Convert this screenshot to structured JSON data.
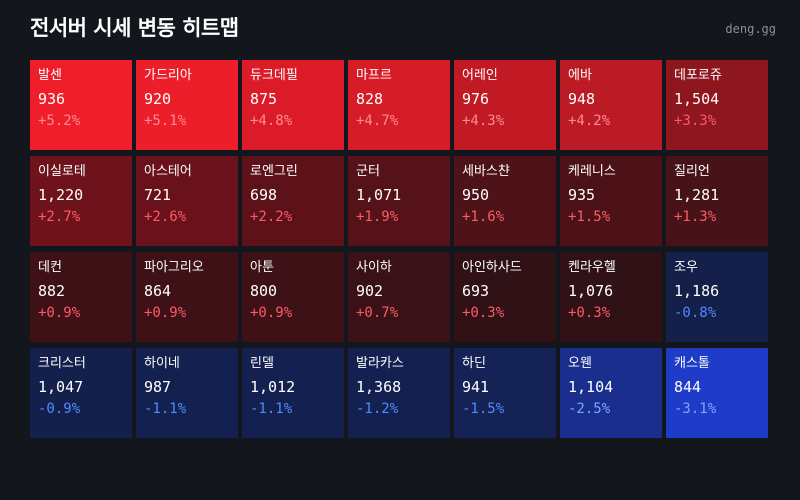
{
  "header": {
    "title": "전서버 시세 변동 히트맵",
    "brand": "deng.gg"
  },
  "colors": {
    "background": "#13161d",
    "up_text": "#ff5a66",
    "up_text_strong": "#ff8a95",
    "down_text": "#4d8cff",
    "down_text_light": "#7aa8ff"
  },
  "chart_data": {
    "type": "heatmap",
    "columns": 7,
    "rows": 4,
    "cells": [
      {
        "name": "발센",
        "price": "936",
        "change": "+5.2%",
        "value": 5.2
      },
      {
        "name": "가드리아",
        "price": "920",
        "change": "+5.1%",
        "value": 5.1
      },
      {
        "name": "듀크데필",
        "price": "875",
        "change": "+4.8%",
        "value": 4.8
      },
      {
        "name": "마프르",
        "price": "828",
        "change": "+4.7%",
        "value": 4.7
      },
      {
        "name": "어레인",
        "price": "976",
        "change": "+4.3%",
        "value": 4.3
      },
      {
        "name": "에바",
        "price": "948",
        "change": "+4.2%",
        "value": 4.2
      },
      {
        "name": "데포로쥬",
        "price": "1,504",
        "change": "+3.3%",
        "value": 3.3
      },
      {
        "name": "이실로테",
        "price": "1,220",
        "change": "+2.7%",
        "value": 2.7
      },
      {
        "name": "아스테어",
        "price": "721",
        "change": "+2.6%",
        "value": 2.6
      },
      {
        "name": "로엔그린",
        "price": "698",
        "change": "+2.2%",
        "value": 2.2
      },
      {
        "name": "군터",
        "price": "1,071",
        "change": "+1.9%",
        "value": 1.9
      },
      {
        "name": "세바스챤",
        "price": "950",
        "change": "+1.6%",
        "value": 1.6
      },
      {
        "name": "케레니스",
        "price": "935",
        "change": "+1.5%",
        "value": 1.5
      },
      {
        "name": "질리언",
        "price": "1,281",
        "change": "+1.3%",
        "value": 1.3
      },
      {
        "name": "데컨",
        "price": "882",
        "change": "+0.9%",
        "value": 0.9
      },
      {
        "name": "파아그리오",
        "price": "864",
        "change": "+0.9%",
        "value": 0.9
      },
      {
        "name": "아툰",
        "price": "800",
        "change": "+0.9%",
        "value": 0.9
      },
      {
        "name": "사이하",
        "price": "902",
        "change": "+0.7%",
        "value": 0.7
      },
      {
        "name": "아인하사드",
        "price": "693",
        "change": "+0.3%",
        "value": 0.3
      },
      {
        "name": "켄라우헬",
        "price": "1,076",
        "change": "+0.3%",
        "value": 0.3
      },
      {
        "name": "조우",
        "price": "1,186",
        "change": "-0.8%",
        "value": -0.8
      },
      {
        "name": "크리스터",
        "price": "1,047",
        "change": "-0.9%",
        "value": -0.9
      },
      {
        "name": "하이네",
        "price": "987",
        "change": "-1.1%",
        "value": -1.1
      },
      {
        "name": "린델",
        "price": "1,012",
        "change": "-1.1%",
        "value": -1.1
      },
      {
        "name": "발라카스",
        "price": "1,368",
        "change": "-1.2%",
        "value": -1.2
      },
      {
        "name": "하딘",
        "price": "941",
        "change": "-1.5%",
        "value": -1.5
      },
      {
        "name": "오웬",
        "price": "1,104",
        "change": "-2.5%",
        "value": -2.5
      },
      {
        "name": "캐스톨",
        "price": "844",
        "change": "-3.1%",
        "value": -3.1
      }
    ]
  }
}
